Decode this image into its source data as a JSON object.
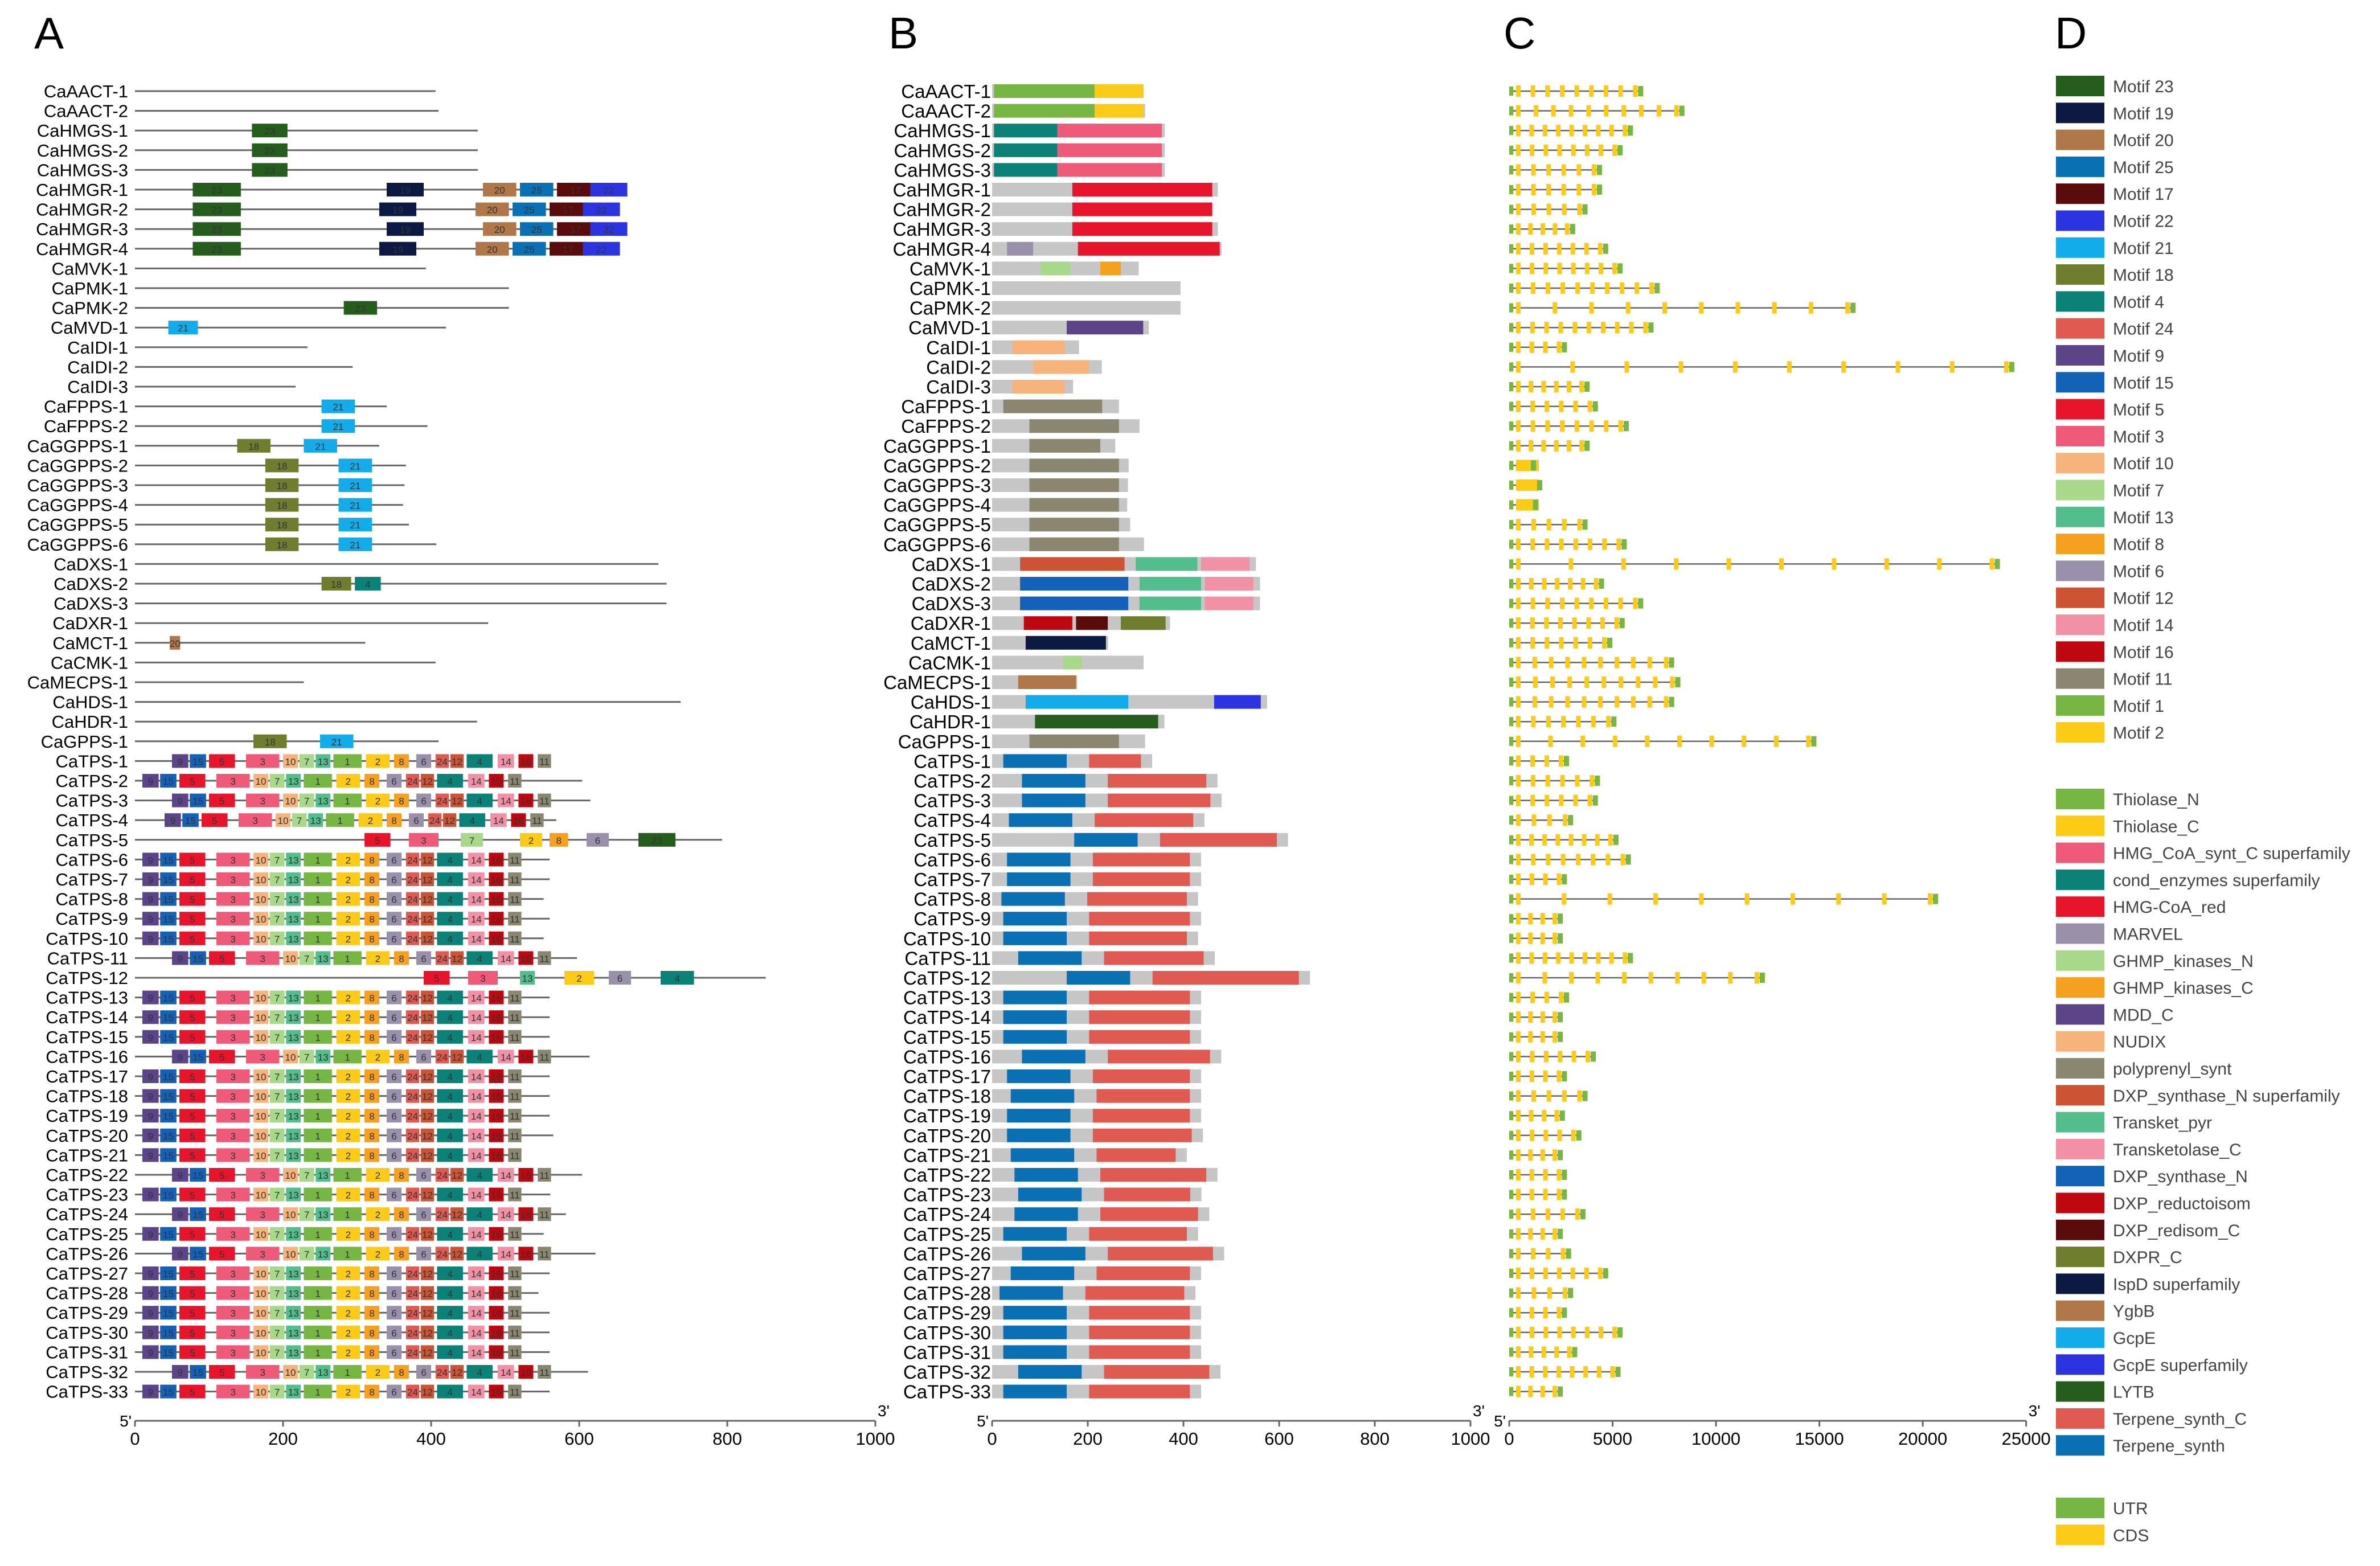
{
  "panel_labels": [
    "A",
    "B",
    "C",
    "D"
  ],
  "genes": [
    "CaAACT-1",
    "CaAACT-2",
    "CaHMGS-1",
    "CaHMGS-2",
    "CaHMGS-3",
    "CaHMGR-1",
    "CaHMGR-2",
    "CaHMGR-3",
    "CaHMGR-4",
    "CaMVK-1",
    "CaPMK-1",
    "CaPMK-2",
    "CaMVD-1",
    "CaIDI-1",
    "CaIDI-2",
    "CaIDI-3",
    "CaFPPS-1",
    "CaFPPS-2",
    "CaGGPPS-1",
    "CaGGPPS-2",
    "CaGGPPS-3",
    "CaGGPPS-4",
    "CaGGPPS-5",
    "CaGGPPS-6",
    "CaDXS-1",
    "CaDXS-2",
    "CaDXS-3",
    "CaDXR-1",
    "CaMCT-1",
    "CaCMK-1",
    "CaMECPS-1",
    "CaHDS-1",
    "CaHDR-1",
    "CaGPPS-1",
    "CaTPS-1",
    "CaTPS-2",
    "CaTPS-3",
    "CaTPS-4",
    "CaTPS-5",
    "CaTPS-6",
    "CaTPS-7",
    "CaTPS-8",
    "CaTPS-9",
    "CaTPS-10",
    "CaTPS-11",
    "CaTPS-12",
    "CaTPS-13",
    "CaTPS-14",
    "CaTPS-15",
    "CaTPS-16",
    "CaTPS-17",
    "CaTPS-18",
    "CaTPS-19",
    "CaTPS-20",
    "CaTPS-21",
    "CaTPS-22",
    "CaTPS-23",
    "CaTPS-24",
    "CaTPS-25",
    "CaTPS-26",
    "CaTPS-27",
    "CaTPS-28",
    "CaTPS-29",
    "CaTPS-30",
    "CaTPS-31",
    "CaTPS-32",
    "CaTPS-33"
  ],
  "lengths": [
    406,
    410,
    463,
    463,
    463,
    605,
    570,
    605,
    615,
    393,
    505,
    505,
    420,
    233,
    294,
    217,
    340,
    395,
    330,
    366,
    364,
    362,
    370,
    407,
    707,
    718,
    718,
    477,
    311,
    406,
    228,
    737,
    462,
    410,
    429,
    604,
    615,
    569,
    793,
    560,
    560,
    552,
    560,
    552,
    597,
    852,
    560,
    560,
    560,
    614,
    560,
    560,
    560,
    565,
    522,
    604,
    561,
    582,
    552,
    622,
    560,
    545,
    560,
    560,
    560,
    612,
    560
  ],
  "axes": {
    "A": {
      "ticks": [
        "0",
        "200",
        "400",
        "600",
        "800",
        "1000"
      ],
      "end_left": "5'",
      "end_right": "3'"
    },
    "B": {
      "ticks": [
        "0",
        "200",
        "400",
        "600",
        "800",
        "1000"
      ],
      "end_left": "5'",
      "end_right": "3'"
    },
    "C": {
      "ticks": [
        "0",
        "5000",
        "10000",
        "15000",
        "20000",
        "25000"
      ],
      "end_left": "5'",
      "end_right": "3'"
    }
  },
  "motif_legend": [
    {
      "label": "Motif 23",
      "color": "#245d1c"
    },
    {
      "label": "Motif 19",
      "color": "#0c1943"
    },
    {
      "label": "Motif 20",
      "color": "#b07848"
    },
    {
      "label": "Motif 25",
      "color": "#0970b4"
    },
    {
      "label": "Motif 17",
      "color": "#5a0c0c"
    },
    {
      "label": "Motif 22",
      "color": "#2c34e2"
    },
    {
      "label": "Motif 21",
      "color": "#12aceb"
    },
    {
      "label": "Motif 18",
      "color": "#6e7e2e"
    },
    {
      "label": "Motif 4",
      "color": "#0a8278"
    },
    {
      "label": "Motif 24",
      "color": "#e05a52"
    },
    {
      "label": "Motif 9",
      "color": "#5c4488"
    },
    {
      "label": "Motif 15",
      "color": "#1462b8"
    },
    {
      "label": "Motif 5",
      "color": "#e8142c"
    },
    {
      "label": "Motif 3",
      "color": "#ef5a78"
    },
    {
      "label": "Motif 10",
      "color": "#f6b47c"
    },
    {
      "label": "Motif 7",
      "color": "#a8d88a"
    },
    {
      "label": "Motif 13",
      "color": "#52be8c"
    },
    {
      "label": "Motif 8",
      "color": "#f6a020"
    },
    {
      "label": "Motif 6",
      "color": "#9a90ac"
    },
    {
      "label": "Motif 12",
      "color": "#cc5434"
    },
    {
      "label": "Motif 14",
      "color": "#f290a6"
    },
    {
      "label": "Motif 16",
      "color": "#c0060e"
    },
    {
      "label": "Motif 11",
      "color": "#8a8670"
    },
    {
      "label": "Motif 1",
      "color": "#76b642"
    },
    {
      "label": "Motif 2",
      "color": "#fccb18"
    }
  ],
  "domain_legend": [
    {
      "label": "Thiolase_N",
      "color": "#76b642"
    },
    {
      "label": "Thiolase_C",
      "color": "#fccb18"
    },
    {
      "label": "HMG_CoA_synt_C superfamily",
      "color": "#ef5a78"
    },
    {
      "label": "cond_enzymes superfamily",
      "color": "#0a8278"
    },
    {
      "label": "HMG-CoA_red",
      "color": "#e8142c"
    },
    {
      "label": "MARVEL",
      "color": "#9a90ac"
    },
    {
      "label": "GHMP_kinases_N",
      "color": "#a8d88a"
    },
    {
      "label": "GHMP_kinases_C",
      "color": "#f6a020"
    },
    {
      "label": "MDD_C",
      "color": "#5c4488"
    },
    {
      "label": "NUDIX",
      "color": "#f6b47c"
    },
    {
      "label": "polyprenyl_synt",
      "color": "#8a8670"
    },
    {
      "label": "DXP_synthase_N superfamily",
      "color": "#cc5434"
    },
    {
      "label": "Transket_pyr",
      "color": "#52be8c"
    },
    {
      "label": "Transketolase_C",
      "color": "#f290a6"
    },
    {
      "label": "DXP_synthase_N",
      "color": "#1462b8"
    },
    {
      "label": "DXP_reductoisom",
      "color": "#c0060e"
    },
    {
      "label": "DXP_redisom_C",
      "color": "#5a0c0c"
    },
    {
      "label": "DXPR_C",
      "color": "#6e7e2e"
    },
    {
      "label": "IspD superfamily",
      "color": "#0c1943"
    },
    {
      "label": "YgbB",
      "color": "#b07848"
    },
    {
      "label": "GcpE",
      "color": "#12aceb"
    },
    {
      "label": "GcpE superfamily",
      "color": "#2c34e2"
    },
    {
      "label": "LYTB",
      "color": "#245d1c"
    },
    {
      "label": "Terpene_synth_C",
      "color": "#e05a52"
    },
    {
      "label": "Terpene_synth",
      "color": "#0970b4"
    }
  ],
  "structure_legend": [
    {
      "label": "UTR",
      "color": "#76b642"
    },
    {
      "label": "CDS",
      "color": "#fccb18"
    }
  ],
  "motif_numbers": [
    "23",
    "19",
    "20",
    "25",
    "17",
    "22",
    "21",
    "18",
    "4",
    "24",
    "9",
    "15",
    "5",
    "3",
    "10",
    "7",
    "13",
    "8",
    "6",
    "12",
    "14",
    "16",
    "11",
    "1",
    "2"
  ]
}
